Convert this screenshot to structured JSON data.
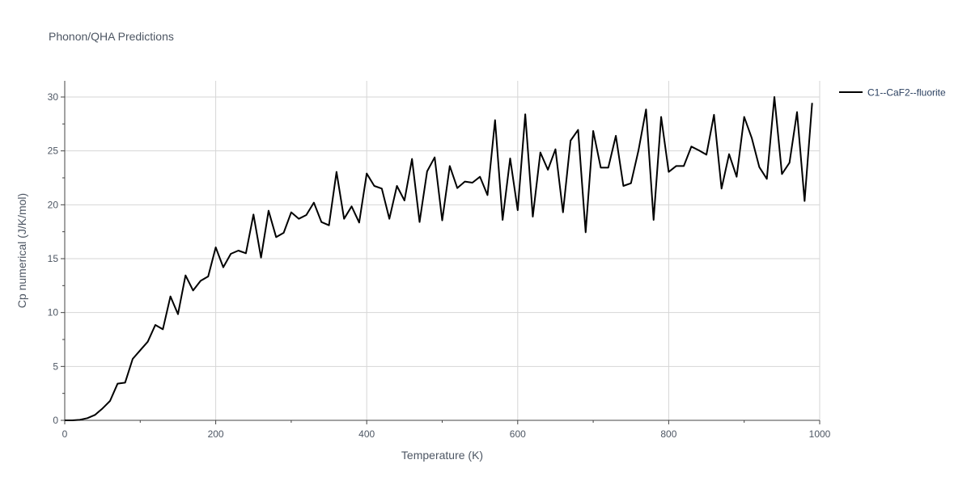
{
  "chart_data": {
    "type": "line",
    "title": "Phonon/QHA Predictions",
    "xlabel": "Temperature (K)",
    "ylabel": "Cp numerical (J/K/mol)",
    "xlim": [
      0,
      1000
    ],
    "ylim": [
      0,
      31.5
    ],
    "xticks": [
      0,
      200,
      400,
      600,
      800,
      1000
    ],
    "yticks": [
      0,
      5,
      10,
      15,
      20,
      25,
      30
    ],
    "grid": true,
    "legend_position": "top-right",
    "series": [
      {
        "name": "C1--CaF2--fluorite",
        "color": "#000000",
        "x": [
          0,
          10,
          20,
          30,
          40,
          50,
          60,
          70,
          80,
          90,
          100,
          110,
          120,
          130,
          140,
          150,
          160,
          170,
          180,
          190,
          200,
          210,
          220,
          230,
          240,
          250,
          260,
          270,
          280,
          290,
          300,
          310,
          320,
          330,
          340,
          350,
          360,
          370,
          380,
          390,
          400,
          410,
          420,
          430,
          440,
          450,
          460,
          470,
          480,
          490,
          500,
          510,
          520,
          530,
          540,
          550,
          560,
          570,
          580,
          590,
          600,
          610,
          620,
          630,
          640,
          650,
          660,
          670,
          680,
          690,
          700,
          710,
          720,
          730,
          740,
          750,
          760,
          770,
          780,
          790,
          800,
          810,
          820,
          830,
          840,
          850,
          860,
          870,
          880,
          890,
          900,
          910,
          920,
          930,
          940,
          950,
          960,
          970,
          980,
          990
        ],
        "y": [
          0,
          0,
          0.05,
          0.2,
          0.5,
          1.1,
          1.8,
          3.4,
          3.5,
          5.7,
          6.5,
          7.3,
          8.85,
          8.45,
          11.5,
          9.85,
          13.45,
          12.05,
          12.95,
          13.35,
          16.05,
          14.2,
          15.45,
          15.75,
          15.5,
          19.1,
          15.1,
          19.45,
          17.0,
          17.4,
          19.3,
          18.7,
          19.05,
          20.2,
          18.4,
          18.1,
          23.05,
          18.7,
          19.85,
          18.35,
          22.9,
          21.75,
          21.5,
          18.7,
          21.75,
          20.4,
          24.25,
          18.4,
          23.1,
          24.4,
          18.55,
          23.6,
          21.55,
          22.15,
          22.05,
          22.6,
          20.9,
          27.85,
          18.6,
          24.3,
          19.5,
          28.4,
          18.9,
          24.85,
          23.25,
          25.15,
          19.3,
          25.95,
          26.95,
          17.45,
          26.85,
          23.45,
          23.45,
          26.4,
          21.75,
          22.0,
          25.05,
          28.85,
          18.6,
          28.15,
          23.05,
          23.6,
          23.6,
          25.4,
          25.05,
          24.65,
          28.35,
          21.5,
          24.7,
          22.6,
          28.15,
          26.2,
          23.5,
          22.4,
          30.0,
          22.85,
          23.9,
          28.6,
          20.35,
          29.45
        ]
      }
    ]
  }
}
